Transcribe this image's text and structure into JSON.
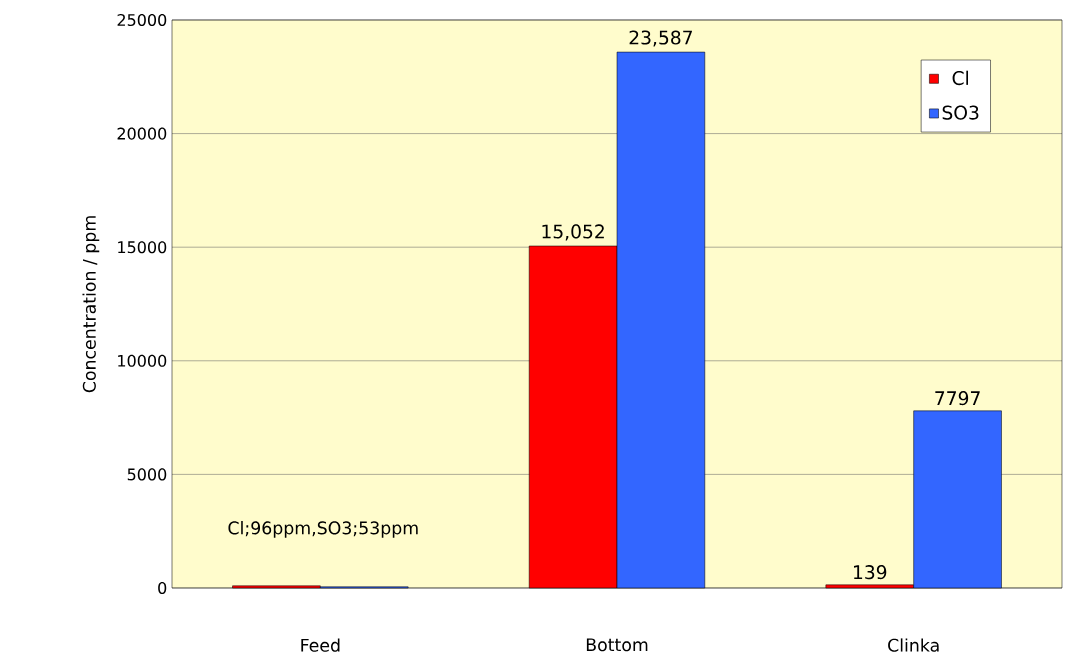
{
  "chart_data": {
    "type": "bar",
    "ylabel": "Concentration  / ppm",
    "categories": [
      "Feed",
      "Bottom",
      "Clinka"
    ],
    "series": [
      {
        "name": "Cl",
        "color": "#ff0000",
        "values": [
          96,
          15052,
          139
        ],
        "value_labels": [
          null,
          "15,052",
          "139"
        ]
      },
      {
        "name": "SO3",
        "color": "#3366ff",
        "values": [
          53,
          23587,
          7797
        ],
        "value_labels": [
          null,
          "23,587",
          "7797"
        ]
      }
    ],
    "ylim": [
      0,
      25000
    ],
    "yticks": [
      0,
      5000,
      10000,
      15000,
      20000,
      25000
    ],
    "grid": "y",
    "legend": "top right",
    "annotations": [
      "Cl;96ppm,SO3;53ppm"
    ]
  }
}
